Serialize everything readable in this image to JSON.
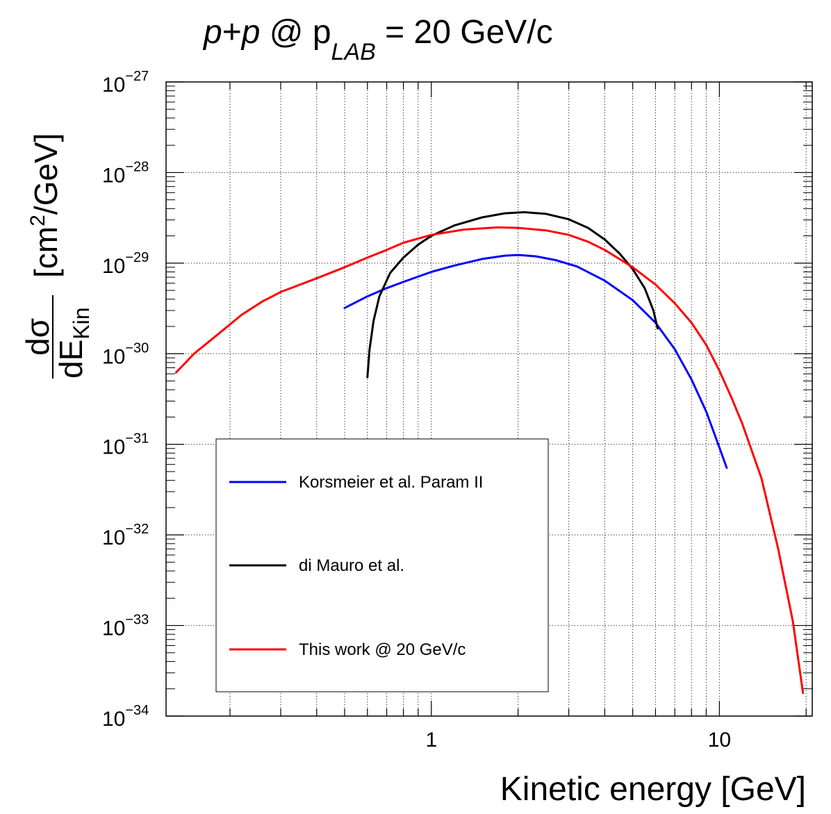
{
  "chart_data": {
    "type": "line",
    "title": {
      "prefix_italic": "p",
      "plus": "+",
      "suffix_italic": "p",
      "at": " @ p",
      "subscript": "LAB",
      "rest": " = 20 GeV/c"
    },
    "xlabel": "Kinetic energy [GeV]",
    "ylabel": {
      "numerator": "dσ",
      "denominator": "dE",
      "denominator_sub": "Kin",
      "unit_open": "[cm",
      "unit_sup": "2",
      "unit_close": "/GeV]"
    },
    "x_scale": "log",
    "y_scale": "log",
    "xlim": [
      0.12,
      21
    ],
    "ylim": [
      1e-34,
      1e-27
    ],
    "grid": true,
    "x_ticks": [
      {
        "value": 1,
        "label": "1"
      },
      {
        "value": 10,
        "label": "10"
      }
    ],
    "y_ticks": [
      {
        "value": 1e-27,
        "base": "10",
        "exp": "−27"
      },
      {
        "value": 1e-28,
        "base": "10",
        "exp": "−28"
      },
      {
        "value": 1e-29,
        "base": "10",
        "exp": "−29"
      },
      {
        "value": 1e-30,
        "base": "10",
        "exp": "−30"
      },
      {
        "value": 1e-31,
        "base": "10",
        "exp": "−31"
      },
      {
        "value": 1e-32,
        "base": "10",
        "exp": "−32"
      },
      {
        "value": 1e-33,
        "base": "10",
        "exp": "−33"
      },
      {
        "value": 1e-34,
        "base": "10",
        "exp": "−34"
      }
    ],
    "legend_placement": "bottom-left",
    "series": [
      {
        "name": "Korsmeier et al. Param II",
        "color": "#0000ff",
        "points": [
          [
            0.5,
            3.2e-30
          ],
          [
            0.6,
            4.3e-30
          ],
          [
            0.7,
            5.3e-30
          ],
          [
            0.8,
            6.2e-30
          ],
          [
            1.0,
            8e-30
          ],
          [
            1.2,
            9.4e-30
          ],
          [
            1.5,
            1.11e-29
          ],
          [
            1.8,
            1.21e-29
          ],
          [
            2.0,
            1.23e-29
          ],
          [
            2.3,
            1.19e-29
          ],
          [
            2.7,
            1.08e-29
          ],
          [
            3.2,
            9.2e-30
          ],
          [
            4.0,
            6.4e-30
          ],
          [
            5.0,
            3.9e-30
          ],
          [
            6.0,
            2.2e-30
          ],
          [
            7.0,
            1.12e-30
          ],
          [
            8.0,
            5.2e-31
          ],
          [
            9.0,
            2.3e-31
          ],
          [
            10.0,
            9.2e-32
          ],
          [
            10.6,
            5.5e-32
          ]
        ]
      },
      {
        "name": "di Mauro et al.",
        "color": "#000000",
        "points": [
          [
            0.6,
            5.5e-31
          ],
          [
            0.61,
            1.1e-30
          ],
          [
            0.63,
            2.3e-30
          ],
          [
            0.66,
            4.3e-30
          ],
          [
            0.72,
            7.8e-30
          ],
          [
            0.8,
            1.15e-29
          ],
          [
            0.9,
            1.6e-29
          ],
          [
            1.0,
            2e-29
          ],
          [
            1.2,
            2.6e-29
          ],
          [
            1.5,
            3.2e-29
          ],
          [
            1.8,
            3.55e-29
          ],
          [
            2.1,
            3.65e-29
          ],
          [
            2.5,
            3.5e-29
          ],
          [
            3.0,
            3.05e-29
          ],
          [
            3.5,
            2.45e-29
          ],
          [
            4.0,
            1.82e-29
          ],
          [
            4.5,
            1.28e-29
          ],
          [
            5.0,
            8.6e-30
          ],
          [
            5.5,
            5.3e-30
          ],
          [
            5.9,
            3e-30
          ],
          [
            6.1,
            1.9e-30
          ]
        ]
      },
      {
        "name": "This work @ 20 GeV/c",
        "color": "#ff0000",
        "points": [
          [
            0.13,
            6.2e-31
          ],
          [
            0.15,
            1e-30
          ],
          [
            0.18,
            1.6e-30
          ],
          [
            0.22,
            2.7e-30
          ],
          [
            0.26,
            3.8e-30
          ],
          [
            0.3,
            4.8e-30
          ],
          [
            0.4,
            6.8e-30
          ],
          [
            0.5,
            9e-30
          ],
          [
            0.6,
            1.15e-29
          ],
          [
            0.7,
            1.4e-29
          ],
          [
            0.8,
            1.68e-29
          ],
          [
            1.0,
            2.05e-29
          ],
          [
            1.3,
            2.35e-29
          ],
          [
            1.7,
            2.48e-29
          ],
          [
            2.0,
            2.45e-29
          ],
          [
            2.5,
            2.3e-29
          ],
          [
            3.0,
            2.05e-29
          ],
          [
            3.5,
            1.72e-29
          ],
          [
            4.0,
            1.4e-29
          ],
          [
            5.0,
            9e-30
          ],
          [
            6.0,
            5.8e-30
          ],
          [
            7.0,
            3.6e-30
          ],
          [
            8.0,
            2.2e-30
          ],
          [
            9.0,
            1.25e-30
          ],
          [
            10.0,
            6.5e-31
          ],
          [
            11.0,
            3.3e-31
          ],
          [
            12.0,
            1.7e-31
          ],
          [
            14.0,
            4.2e-32
          ],
          [
            16.0,
            7e-33
          ],
          [
            18.0,
            1.1e-33
          ],
          [
            19.5,
            1.8e-34
          ]
        ]
      }
    ]
  }
}
